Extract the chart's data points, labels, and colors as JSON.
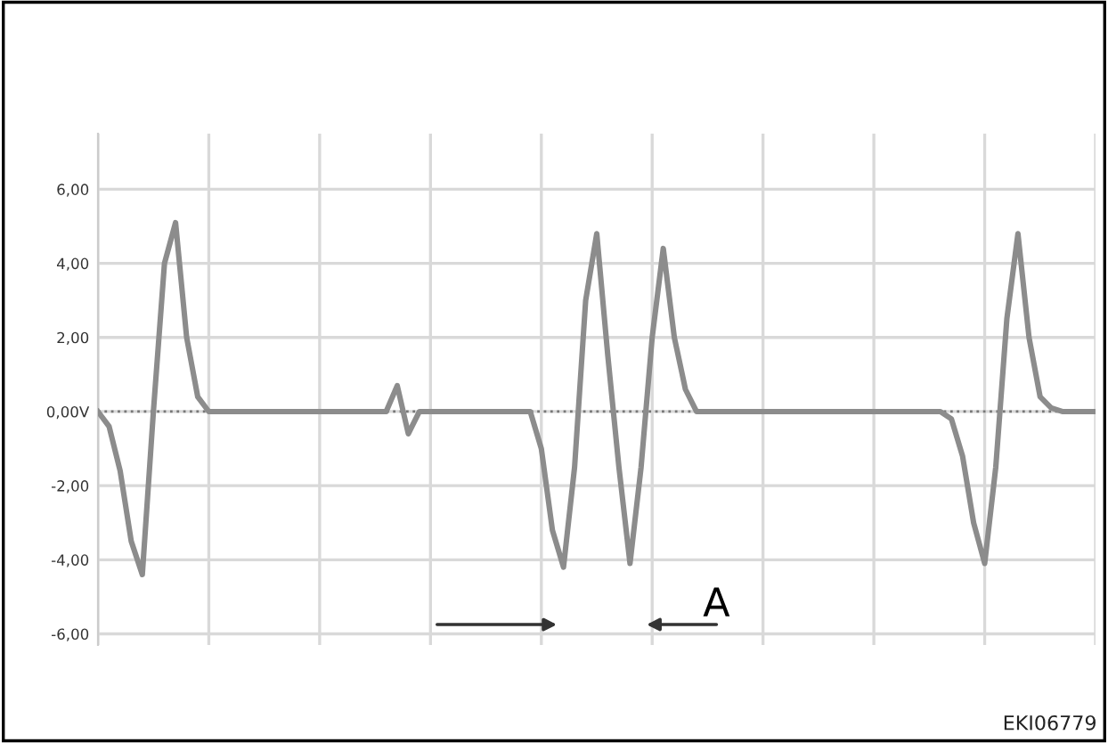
{
  "chart_data": {
    "type": "line",
    "categories": [
      null,
      null,
      null,
      null,
      null,
      null,
      null,
      null,
      null,
      null,
      null,
      null,
      null,
      null,
      null,
      null,
      null,
      null,
      null,
      null,
      null,
      null,
      null,
      null,
      null,
      null,
      null,
      null,
      null,
      null,
      null,
      null,
      null,
      null,
      null,
      null,
      null,
      null,
      null,
      null,
      null,
      null,
      null,
      null,
      null,
      null,
      null,
      null,
      null,
      null,
      null,
      null,
      null,
      null,
      null,
      null,
      null,
      null,
      null,
      null,
      null,
      null,
      null,
      null,
      null,
      null,
      null,
      null,
      null,
      null,
      null,
      null,
      null,
      null,
      null,
      null,
      null,
      null,
      null,
      null,
      null,
      null,
      null,
      null,
      null,
      null,
      null,
      null,
      null,
      null,
      null
    ],
    "series": [
      {
        "color": "#8c8c8c",
        "values": [
          0,
          -0.4,
          -1.6,
          -3.5,
          -4.4,
          0,
          4.0,
          5.1,
          2.0,
          0.4,
          0,
          0,
          0,
          0,
          0,
          0,
          0,
          0,
          0,
          0,
          0,
          0,
          0,
          0,
          0,
          0,
          0,
          0.7,
          -0.6,
          0,
          0,
          0,
          0,
          0,
          0,
          0,
          0,
          0,
          0,
          0,
          -1.0,
          -3.2,
          -4.2,
          -1.5,
          3.0,
          4.8,
          1.5,
          -1.5,
          -4.1,
          -1.5,
          2.0,
          4.4,
          2.0,
          0.6,
          0,
          0,
          0,
          0,
          0,
          0,
          0,
          0,
          0,
          0,
          0,
          0,
          0,
          0,
          0,
          0,
          0,
          0,
          0,
          0,
          0,
          0,
          0,
          -0.2,
          -1.2,
          -3.0,
          -4.1,
          -1.5,
          2.5,
          4.8,
          2.0,
          0.4,
          0.1,
          0,
          0,
          0,
          0
        ]
      }
    ],
    "ylim": [
      -6.3,
      7.5
    ],
    "yticks": [
      {
        "value": -6,
        "label": "-6,00"
      },
      {
        "value": -4,
        "label": "-4,00"
      },
      {
        "value": -2,
        "label": "-2,00"
      },
      {
        "value": 0,
        "label": "0,00V"
      },
      {
        "value": 2,
        "label": "2,00"
      },
      {
        "value": 4,
        "label": "4,00"
      },
      {
        "value": 6,
        "label": "6,00"
      }
    ],
    "grid": true,
    "line_style": "solid",
    "ref_lines": [
      {
        "axis": "y",
        "value": 0,
        "color": "#777777",
        "line_style": "dotted"
      }
    ],
    "annotations": [
      "A",
      "EKI06779"
    ]
  }
}
